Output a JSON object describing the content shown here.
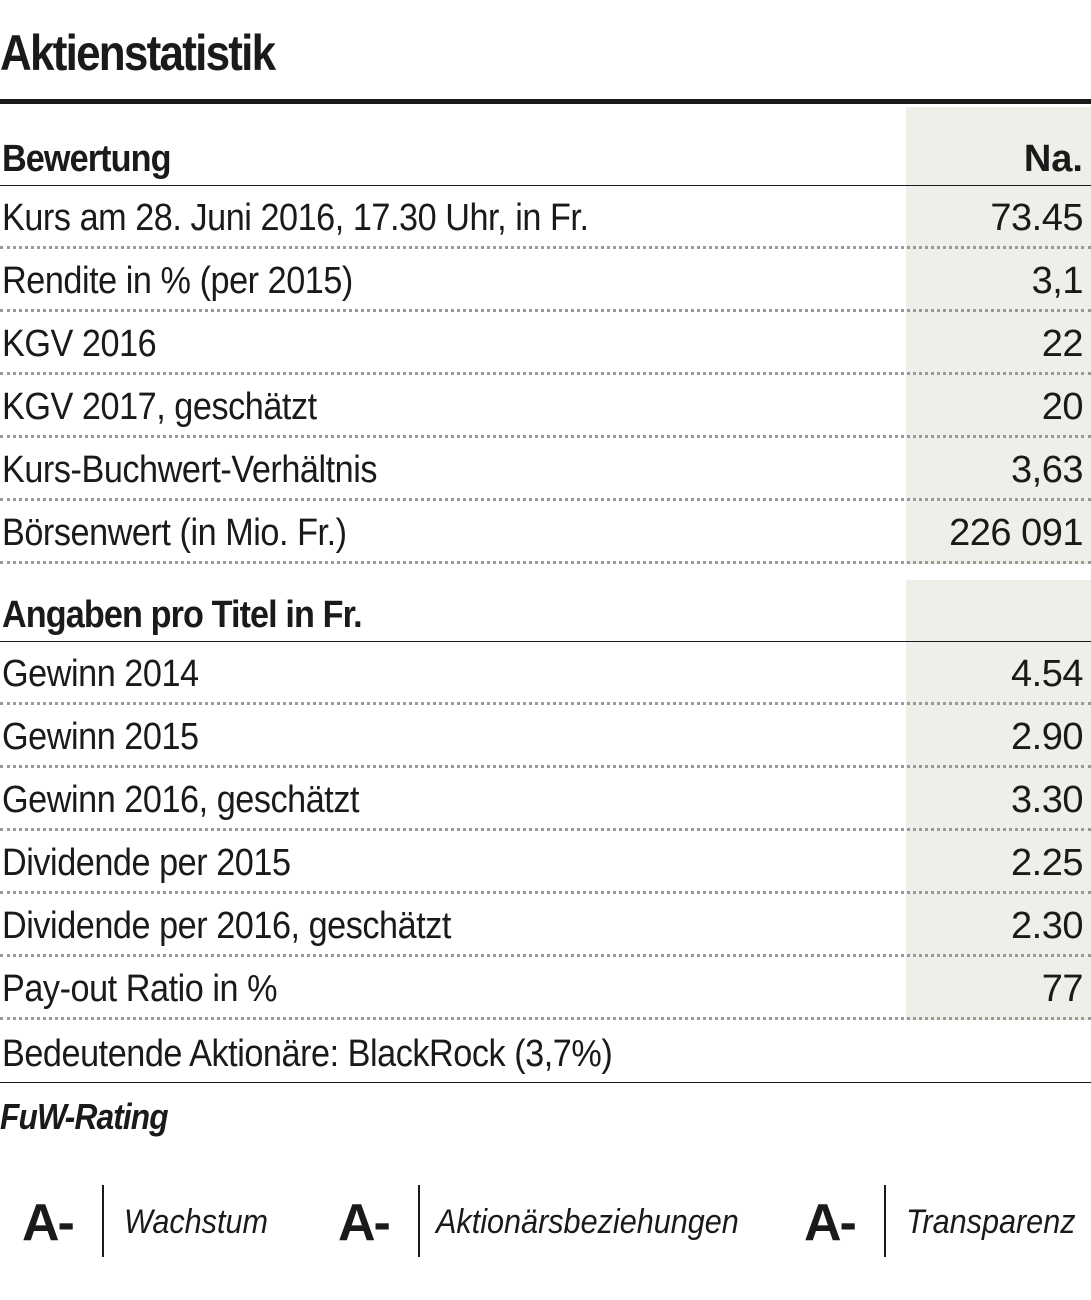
{
  "title": "Aktienstatistik",
  "section1": {
    "label": "Bewertung",
    "unit": "Na.",
    "rows": [
      {
        "label": "Kurs am 28. Juni 2016, 17.30 Uhr, in Fr.",
        "value": "73.45"
      },
      {
        "label": "Rendite in % (per 2015)",
        "value": "3,1"
      },
      {
        "label": "KGV 2016",
        "value": "22"
      },
      {
        "label": "KGV 2017, geschätzt",
        "value": "20"
      },
      {
        "label": "Kurs-Buchwert-Verhältnis",
        "value": "3,63"
      },
      {
        "label": "Börsenwert (in Mio. Fr.)",
        "value": "226 091"
      }
    ]
  },
  "section2": {
    "label": "Angaben pro Titel in Fr.",
    "rows": [
      {
        "label": "Gewinn 2014",
        "value": "4.54"
      },
      {
        "label": "Gewinn 2015",
        "value": "2.90"
      },
      {
        "label": "Gewinn 2016, geschätzt",
        "value": "3.30"
      },
      {
        "label": "Dividende per 2015",
        "value": "2.25"
      },
      {
        "label": "Dividende per 2016, geschätzt",
        "value": "2.30"
      },
      {
        "label": "Pay-out Ratio in %",
        "value": "77"
      }
    ]
  },
  "shareholders": "Bedeutende Aktionäre: BlackRock (3,7%)",
  "rating": {
    "title": "FuW-Rating",
    "items": [
      {
        "grade": "A-",
        "category": "Wachstum"
      },
      {
        "grade": "A-",
        "category": "Aktionärsbeziehungen"
      },
      {
        "grade": "A-",
        "category": "Transparenz"
      }
    ]
  }
}
